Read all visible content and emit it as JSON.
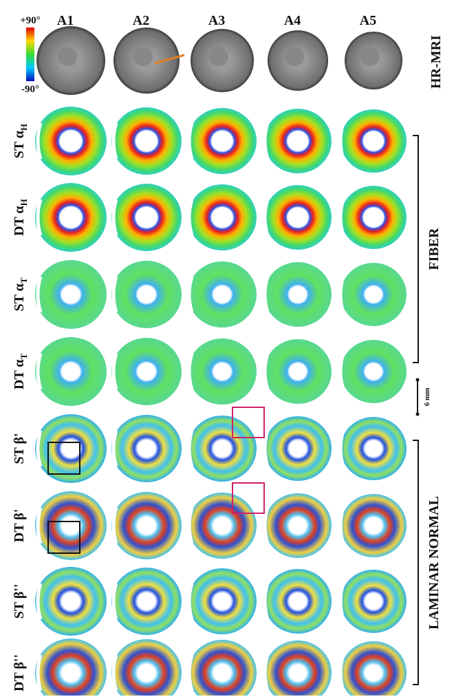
{
  "colorbar": {
    "top": "+90°",
    "bottom": "-90°"
  },
  "columns": [
    "A1",
    "A2",
    "A3",
    "A4",
    "A5"
  ],
  "rows": [
    {
      "text": "ST α",
      "sub": "H"
    },
    {
      "text": "DT α",
      "sub": "H"
    },
    {
      "text": "ST α",
      "sub": "T"
    },
    {
      "text": "DT α",
      "sub": "T"
    },
    {
      "text": "ST β'"
    },
    {
      "text": "DT β'"
    },
    {
      "text": "ST β''"
    },
    {
      "text": "DT β''"
    }
  ],
  "top_row_label": "HR-MRI",
  "groups": [
    "FIBER",
    "LAMINAR NORMAL"
  ],
  "scale_bar": "6 mm"
}
